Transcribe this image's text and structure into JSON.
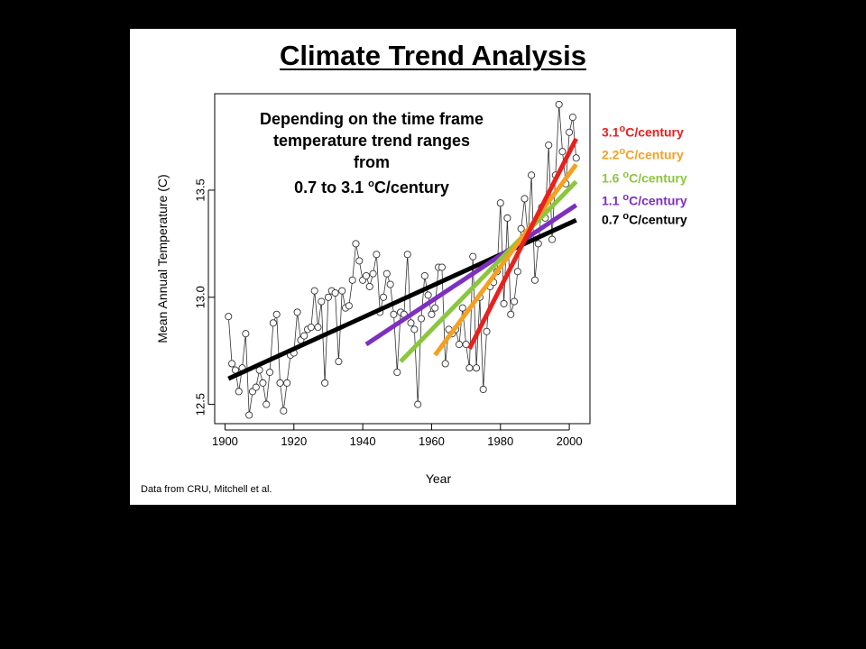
{
  "slide": {
    "title": "Climate Trend Analysis",
    "annotation": {
      "line1": "Depending on the time frame",
      "line2": "temperature trend ranges",
      "line3": "from",
      "line4_value": "0.7 to 3.1 ",
      "line4_sup": "o",
      "line4_unit": "C/century"
    },
    "source": "Data from CRU, Mitchell et al."
  },
  "legend": [
    {
      "value": "3.1",
      "sup": "o",
      "unit": "C/century",
      "color": "#e8201e"
    },
    {
      "value": "2.2",
      "sup": "o",
      "unit": "C/century",
      "color": "#f5a020"
    },
    {
      "value": "1.6 ",
      "sup": "o",
      "unit": "C/century",
      "color": "#8cc63f"
    },
    {
      "value": "1.1 ",
      "sup": "o",
      "unit": "C/century",
      "color": "#7d2fc0"
    },
    {
      "value": "0.7 ",
      "sup": "o",
      "unit": "C/century",
      "color": "#000000"
    }
  ],
  "chart_data": {
    "type": "line",
    "xlabel": "Year",
    "ylabel": "Mean Annual Temperature (C)",
    "xlim": [
      1897,
      2006
    ],
    "ylim": [
      12.41,
      13.95
    ],
    "xticks": [
      1900,
      1920,
      1940,
      1960,
      1980,
      2000
    ],
    "yticks": [
      12.5,
      13.0,
      13.5
    ],
    "grid": false,
    "legend_position": "right outside",
    "series": [
      {
        "x": [
          1901,
          1902,
          1903,
          1904,
          1905,
          1906,
          1907,
          1908,
          1909,
          1910,
          1911,
          1912,
          1913,
          1914,
          1915,
          1916,
          1917,
          1918,
          1919,
          1920,
          1921,
          1922,
          1923,
          1924,
          1925,
          1926,
          1927,
          1928,
          1929,
          1930,
          1931,
          1932,
          1933,
          1934,
          1935,
          1936,
          1937,
          1938,
          1939,
          1940,
          1941,
          1942,
          1943,
          1944,
          1945,
          1946,
          1947,
          1948,
          1949,
          1950,
          1951,
          1952,
          1953,
          1954,
          1955,
          1956,
          1957,
          1958,
          1959,
          1960,
          1961,
          1962,
          1963,
          1964,
          1965,
          1966,
          1967,
          1968,
          1969,
          1970,
          1971,
          1972,
          1973,
          1974,
          1975,
          1976,
          1977,
          1978,
          1979,
          1980,
          1981,
          1982,
          1983,
          1984,
          1985,
          1986,
          1987,
          1988,
          1989,
          1990,
          1991,
          1992,
          1993,
          1994,
          1995,
          1996,
          1997,
          1998,
          1999,
          2000,
          2001,
          2002
        ],
        "y": [
          12.91,
          12.69,
          12.66,
          12.56,
          12.67,
          12.83,
          12.45,
          12.56,
          12.58,
          12.66,
          12.6,
          12.5,
          12.65,
          12.88,
          12.92,
          12.6,
          12.47,
          12.6,
          12.73,
          12.74,
          12.93,
          12.8,
          12.82,
          12.85,
          12.86,
          13.03,
          12.86,
          12.98,
          12.6,
          13.0,
          13.03,
          13.02,
          12.7,
          13.03,
          12.95,
          12.96,
          13.08,
          13.25,
          13.17,
          13.08,
          13.1,
          13.05,
          13.11,
          13.2,
          12.93,
          13.0,
          13.11,
          13.06,
          12.92,
          12.65,
          12.93,
          12.92,
          13.2,
          12.88,
          12.85,
          12.5,
          12.9,
          13.1,
          13.01,
          12.92,
          12.95,
          13.14,
          13.14,
          12.69,
          12.85,
          12.83,
          12.85,
          12.78,
          12.95,
          12.78,
          12.67,
          13.19,
          12.67,
          13.0,
          12.57,
          12.84,
          13.05,
          13.07,
          13.12,
          13.44,
          12.97,
          13.37,
          12.92,
          12.98,
          13.12,
          13.32,
          13.46,
          13.28,
          13.57,
          13.08,
          13.25,
          13.42,
          13.37,
          13.71,
          13.27,
          13.57,
          13.9,
          13.68,
          13.53,
          13.77,
          13.84,
          13.65
        ]
      }
    ],
    "trend_lines": [
      {
        "label": "0.7 °C/century",
        "x_start": 1901,
        "x_end": 2002,
        "y_start": 12.62,
        "y_end": 13.36,
        "color": "#000000"
      },
      {
        "label": "1.1 °C/century",
        "x_start": 1941,
        "x_end": 2002,
        "y_start": 12.78,
        "y_end": 13.43,
        "color": "#7d2fc0"
      },
      {
        "label": "1.6 °C/century",
        "x_start": 1951,
        "x_end": 2002,
        "y_start": 12.7,
        "y_end": 13.54,
        "color": "#8cc63f"
      },
      {
        "label": "2.2 °C/century",
        "x_start": 1961,
        "x_end": 2002,
        "y_start": 12.73,
        "y_end": 13.62,
        "color": "#f5a020"
      },
      {
        "label": "3.1 °C/century",
        "x_start": 1971,
        "x_end": 2002,
        "y_start": 12.76,
        "y_end": 13.74,
        "color": "#e8201e"
      }
    ]
  }
}
